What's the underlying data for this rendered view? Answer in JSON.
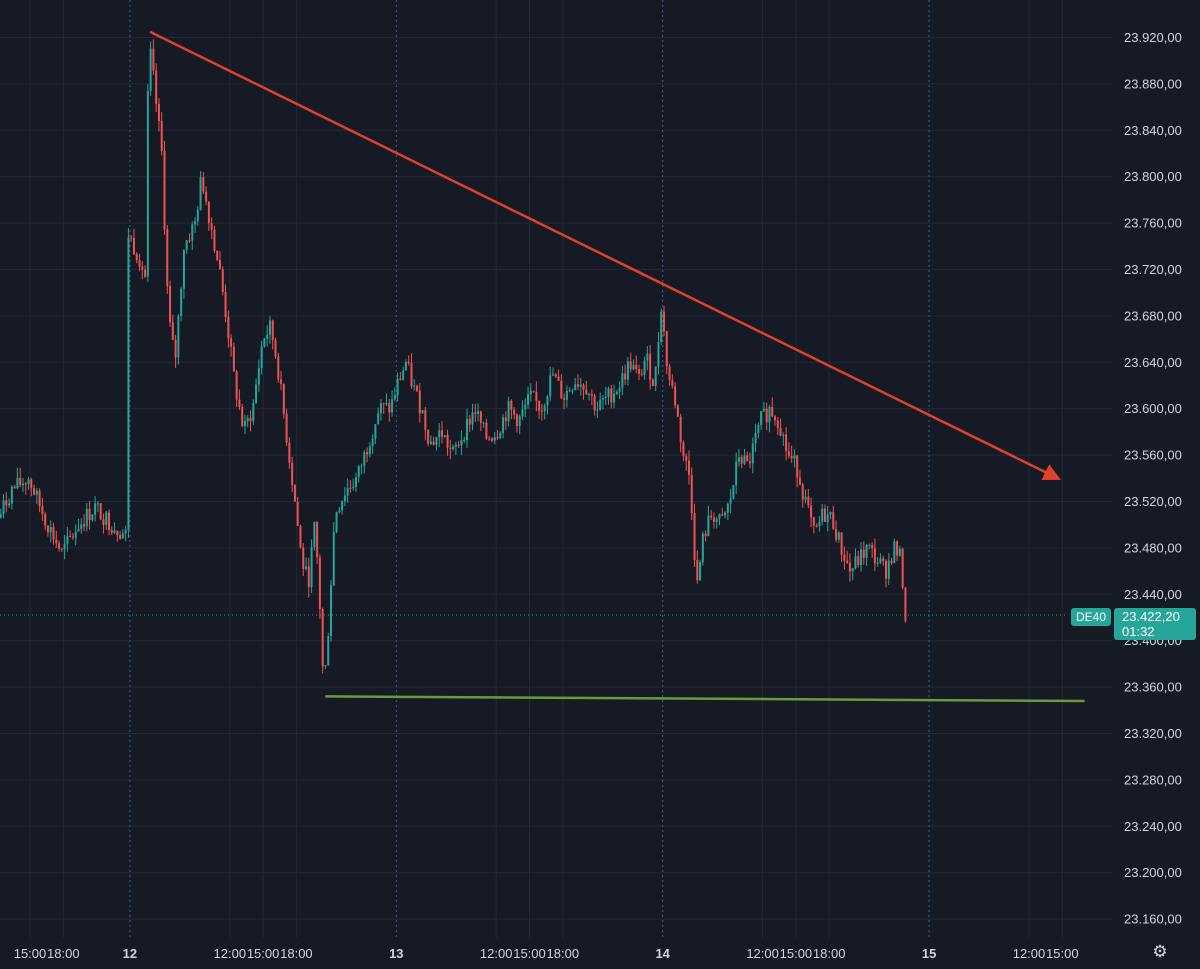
{
  "chart_data": {
    "type": "candlestick",
    "symbol": "DE40",
    "last_price": "23.422,20",
    "countdown": "01:32",
    "colors": {
      "background": "#161a25",
      "up": "#26a69a",
      "down": "#ef5350",
      "trendline": "#e0402e",
      "support": "#6b9a3c",
      "grid": "#232836",
      "separator": "#3b5f91"
    },
    "ylim": [
      23140,
      23940
    ],
    "y_ticks": [
      {
        "value": 23920,
        "label": "23.920,00"
      },
      {
        "value": 23880,
        "label": "23.880,00"
      },
      {
        "value": 23840,
        "label": "23.840,00"
      },
      {
        "value": 23800,
        "label": "23.800,00"
      },
      {
        "value": 23760,
        "label": "23.760,00"
      },
      {
        "value": 23720,
        "label": "23.720,00"
      },
      {
        "value": 23680,
        "label": "23.680,00"
      },
      {
        "value": 23640,
        "label": "23.640,00"
      },
      {
        "value": 23600,
        "label": "23.600,00"
      },
      {
        "value": 23560,
        "label": "23.560,00"
      },
      {
        "value": 23520,
        "label": "23.520,00"
      },
      {
        "value": 23480,
        "label": "23.480,00"
      },
      {
        "value": 23440,
        "label": "23.440,00"
      },
      {
        "value": 23400,
        "label": "23.400,00"
      },
      {
        "value": 23360,
        "label": "23.360,00"
      },
      {
        "value": 23320,
        "label": "23.320,00"
      },
      {
        "value": 23280,
        "label": "23.280,00"
      },
      {
        "value": 23240,
        "label": "23.240,00"
      },
      {
        "value": 23200,
        "label": "23.200,00"
      },
      {
        "value": 23160,
        "label": "23.160,00"
      }
    ],
    "xlim": [
      -6,
      126
    ],
    "x_ticks": [
      {
        "t": -3,
        "label": "15:00",
        "day": false
      },
      {
        "t": 0,
        "label": "18:00",
        "day": false
      },
      {
        "t": 6,
        "label": "12",
        "day": true
      },
      {
        "t": 15,
        "label": "12:00",
        "day": false
      },
      {
        "t": 18,
        "label": "15:00",
        "day": false
      },
      {
        "t": 21,
        "label": "18:00",
        "day": false
      },
      {
        "t": 30,
        "label": "13",
        "day": true
      },
      {
        "t": 39,
        "label": "12:00",
        "day": false
      },
      {
        "t": 42,
        "label": "15:00",
        "day": false
      },
      {
        "t": 45,
        "label": "18:00",
        "day": false
      },
      {
        "t": 54,
        "label": "14",
        "day": true
      },
      {
        "t": 63,
        "label": "12:00",
        "day": false
      },
      {
        "t": 66,
        "label": "15:00",
        "day": false
      },
      {
        "t": 69,
        "label": "18:00",
        "day": false
      },
      {
        "t": 78,
        "label": "15",
        "day": true
      },
      {
        "t": 87,
        "label": "12:00",
        "day": false
      },
      {
        "t": 90,
        "label": "15:00",
        "day": false
      }
    ],
    "day_separators": [
      6,
      30,
      54,
      78
    ],
    "price_path": [
      [
        -6.0,
        23500
      ],
      [
        -4.5,
        23530
      ],
      [
        -3.0,
        23540
      ],
      [
        -1.5,
        23505
      ],
      [
        0.0,
        23475
      ],
      [
        1.5,
        23500
      ],
      [
        3.0,
        23515
      ],
      [
        4.5,
        23500
      ],
      [
        5.9,
        23490
      ],
      [
        6.0,
        23750
      ],
      [
        7.0,
        23730
      ],
      [
        7.6,
        23710
      ],
      [
        7.8,
        23920
      ],
      [
        8.3,
        23880
      ],
      [
        9.0,
        23820
      ],
      [
        9.6,
        23680
      ],
      [
        10.2,
        23640
      ],
      [
        11.0,
        23740
      ],
      [
        12.0,
        23760
      ],
      [
        12.6,
        23800
      ],
      [
        13.4,
        23760
      ],
      [
        14.2,
        23720
      ],
      [
        14.8,
        23680
      ],
      [
        15.6,
        23620
      ],
      [
        16.4,
        23580
      ],
      [
        17.2,
        23600
      ],
      [
        18.1,
        23660
      ],
      [
        18.8,
        23670
      ],
      [
        19.4,
        23640
      ],
      [
        20.2,
        23580
      ],
      [
        21.0,
        23520
      ],
      [
        21.6,
        23470
      ],
      [
        22.2,
        23450
      ],
      [
        22.8,
        23500
      ],
      [
        23.2,
        23440
      ],
      [
        23.6,
        23355
      ],
      [
        24.0,
        23410
      ],
      [
        24.6,
        23510
      ],
      [
        25.6,
        23530
      ],
      [
        26.6,
        23540
      ],
      [
        27.6,
        23570
      ],
      [
        28.6,
        23600
      ],
      [
        29.6,
        23600
      ],
      [
        30.2,
        23620
      ],
      [
        31.0,
        23640
      ],
      [
        31.6,
        23620
      ],
      [
        32.4,
        23600
      ],
      [
        33.2,
        23570
      ],
      [
        34.2,
        23580
      ],
      [
        35.2,
        23560
      ],
      [
        36.2,
        23580
      ],
      [
        37.2,
        23600
      ],
      [
        38.2,
        23575
      ],
      [
        39.2,
        23580
      ],
      [
        40.2,
        23600
      ],
      [
        41.2,
        23590
      ],
      [
        42.2,
        23610
      ],
      [
        43.2,
        23600
      ],
      [
        44.2,
        23630
      ],
      [
        45.2,
        23610
      ],
      [
        46.2,
        23625
      ],
      [
        47.2,
        23620
      ],
      [
        48.2,
        23600
      ],
      [
        49.2,
        23610
      ],
      [
        50.2,
        23620
      ],
      [
        51.2,
        23640
      ],
      [
        52.0,
        23625
      ],
      [
        52.6,
        23645
      ],
      [
        53.4,
        23620
      ],
      [
        54.0,
        23690
      ],
      [
        54.6,
        23630
      ],
      [
        55.2,
        23610
      ],
      [
        56.0,
        23560
      ],
      [
        56.6,
        23540
      ],
      [
        57.2,
        23445
      ],
      [
        57.8,
        23490
      ],
      [
        58.6,
        23510
      ],
      [
        59.4,
        23500
      ],
      [
        60.2,
        23520
      ],
      [
        61.0,
        23560
      ],
      [
        61.8,
        23550
      ],
      [
        62.4,
        23570
      ],
      [
        63.0,
        23590
      ],
      [
        63.8,
        23600
      ],
      [
        64.6,
        23590
      ],
      [
        65.4,
        23560
      ],
      [
        66.2,
        23550
      ],
      [
        67.0,
        23520
      ],
      [
        67.8,
        23490
      ],
      [
        68.6,
        23510
      ],
      [
        69.4,
        23505
      ],
      [
        70.2,
        23480
      ],
      [
        71.0,
        23460
      ],
      [
        71.8,
        23470
      ],
      [
        72.6,
        23480
      ],
      [
        73.4,
        23470
      ],
      [
        74.2,
        23460
      ],
      [
        75.0,
        23480
      ],
      [
        75.6,
        23470
      ],
      [
        76.0,
        23420
      ],
      [
        76.4,
        23425
      ]
    ],
    "trendline": {
      "start": [
        7.8,
        23925
      ],
      "end": [
        89.6,
        23540
      ]
    },
    "support_line": {
      "start": [
        23.6,
        23352
      ],
      "end": [
        92.0,
        23348
      ]
    }
  }
}
